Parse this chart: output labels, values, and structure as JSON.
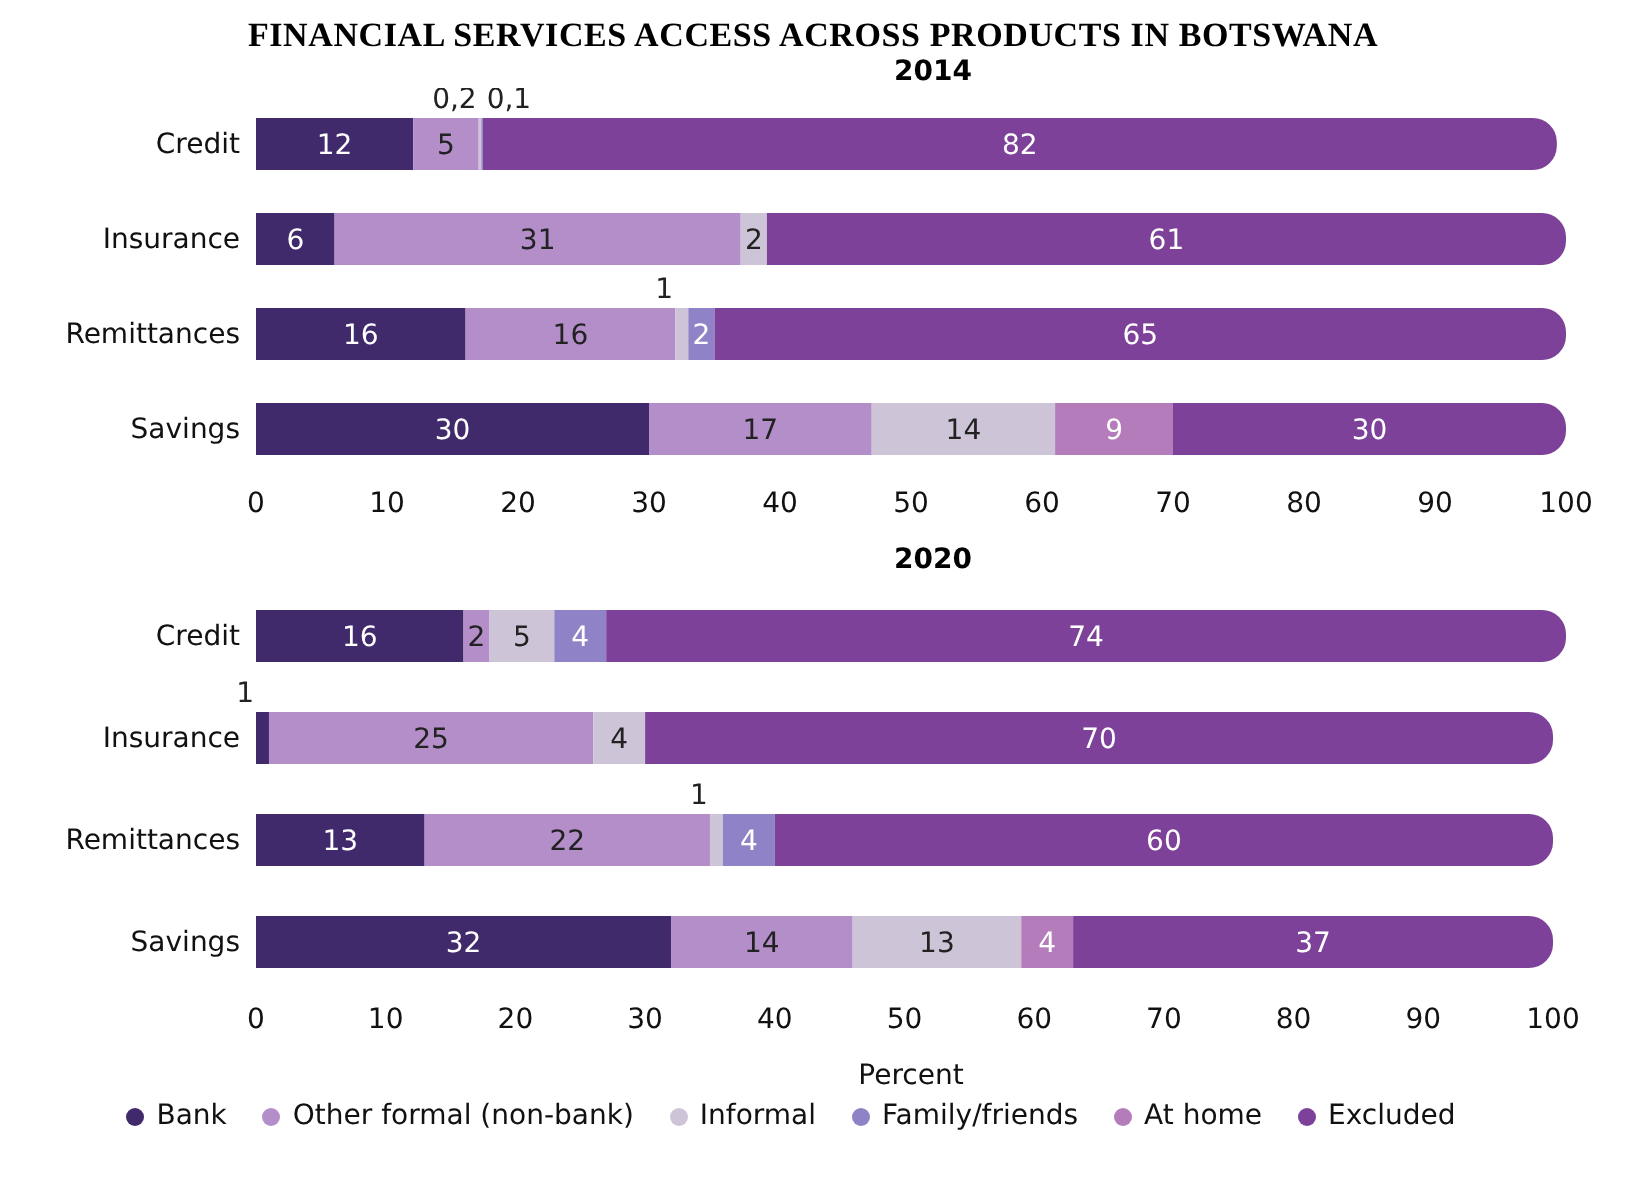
{
  "chart_data": [
    {
      "type": "bar",
      "orientation": "horizontal",
      "stacked": true,
      "title": "FINANCIAL SERVICES ACCESS ACROSS PRODUCTS IN BOTSWANA",
      "subtitle": "2014",
      "categories": [
        "Credit",
        "Insurance",
        "Remittances",
        "Savings"
      ],
      "xlim": [
        0,
        100
      ],
      "xticks": [
        0,
        10,
        20,
        30,
        40,
        50,
        60,
        70,
        80,
        90,
        100
      ],
      "series": [
        {
          "color": "#402a6c",
          "values": [
            12,
            6,
            16,
            30
          ],
          "value_labels": [
            "12",
            "6",
            "16",
            "30"
          ]
        },
        {
          "color": "#b48ec9",
          "values": [
            5,
            31,
            16,
            17
          ],
          "value_labels": [
            "5",
            "31",
            "16",
            "17"
          ]
        },
        {
          "color": "#cec4d8",
          "values": [
            0.2,
            2,
            1,
            14
          ],
          "value_labels": [
            "0,2",
            "2",
            "1",
            "14"
          ]
        },
        {
          "color": "#8f82c6",
          "values": [
            0.1,
            null,
            2,
            null
          ],
          "value_labels": [
            "0,1",
            null,
            "2",
            null
          ]
        },
        {
          "color": "#b47cbb",
          "values": [
            null,
            null,
            null,
            9
          ],
          "value_labels": [
            null,
            null,
            null,
            "9"
          ]
        },
        {
          "color": "#7d4199",
          "values": [
            82,
            61,
            65,
            30
          ],
          "value_labels": [
            "82",
            "61",
            "65",
            "30"
          ]
        }
      ]
    },
    {
      "type": "bar",
      "orientation": "horizontal",
      "stacked": true,
      "title": "2020",
      "xlabel": "Percent",
      "legend": "bottom",
      "categories": [
        "Credit",
        "Insurance",
        "Remittances",
        "Savings"
      ],
      "xlim": [
        0,
        101
      ],
      "xticks": [
        0,
        10,
        20,
        30,
        40,
        50,
        60,
        70,
        80,
        90,
        100
      ],
      "series": [
        {
          "name": "Bank",
          "color": "#402a6c",
          "values": [
            16,
            1,
            13,
            32
          ],
          "value_labels": [
            "16",
            "1",
            "13",
            "32"
          ]
        },
        {
          "name": "Other formal (non-bank)",
          "color": "#b48ec9",
          "values": [
            2,
            25,
            22,
            14
          ],
          "value_labels": [
            "2",
            "25",
            "22",
            "14"
          ]
        },
        {
          "name": "Informal",
          "color": "#cec4d8",
          "values": [
            5,
            4,
            1,
            13
          ],
          "value_labels": [
            "5",
            "4",
            "1",
            "13"
          ]
        },
        {
          "name": "Family/friends",
          "color": "#8f82c6",
          "values": [
            4,
            null,
            4,
            null
          ],
          "value_labels": [
            "4",
            null,
            "4",
            null
          ]
        },
        {
          "name": "At home",
          "color": "#b47cbb",
          "values": [
            null,
            null,
            null,
            4
          ],
          "value_labels": [
            null,
            null,
            null,
            "4"
          ]
        },
        {
          "name": "Excluded",
          "color": "#7d4199",
          "values": [
            74,
            70,
            60,
            37
          ],
          "value_labels": [
            "74",
            "70",
            "60",
            "37"
          ]
        }
      ]
    }
  ]
}
